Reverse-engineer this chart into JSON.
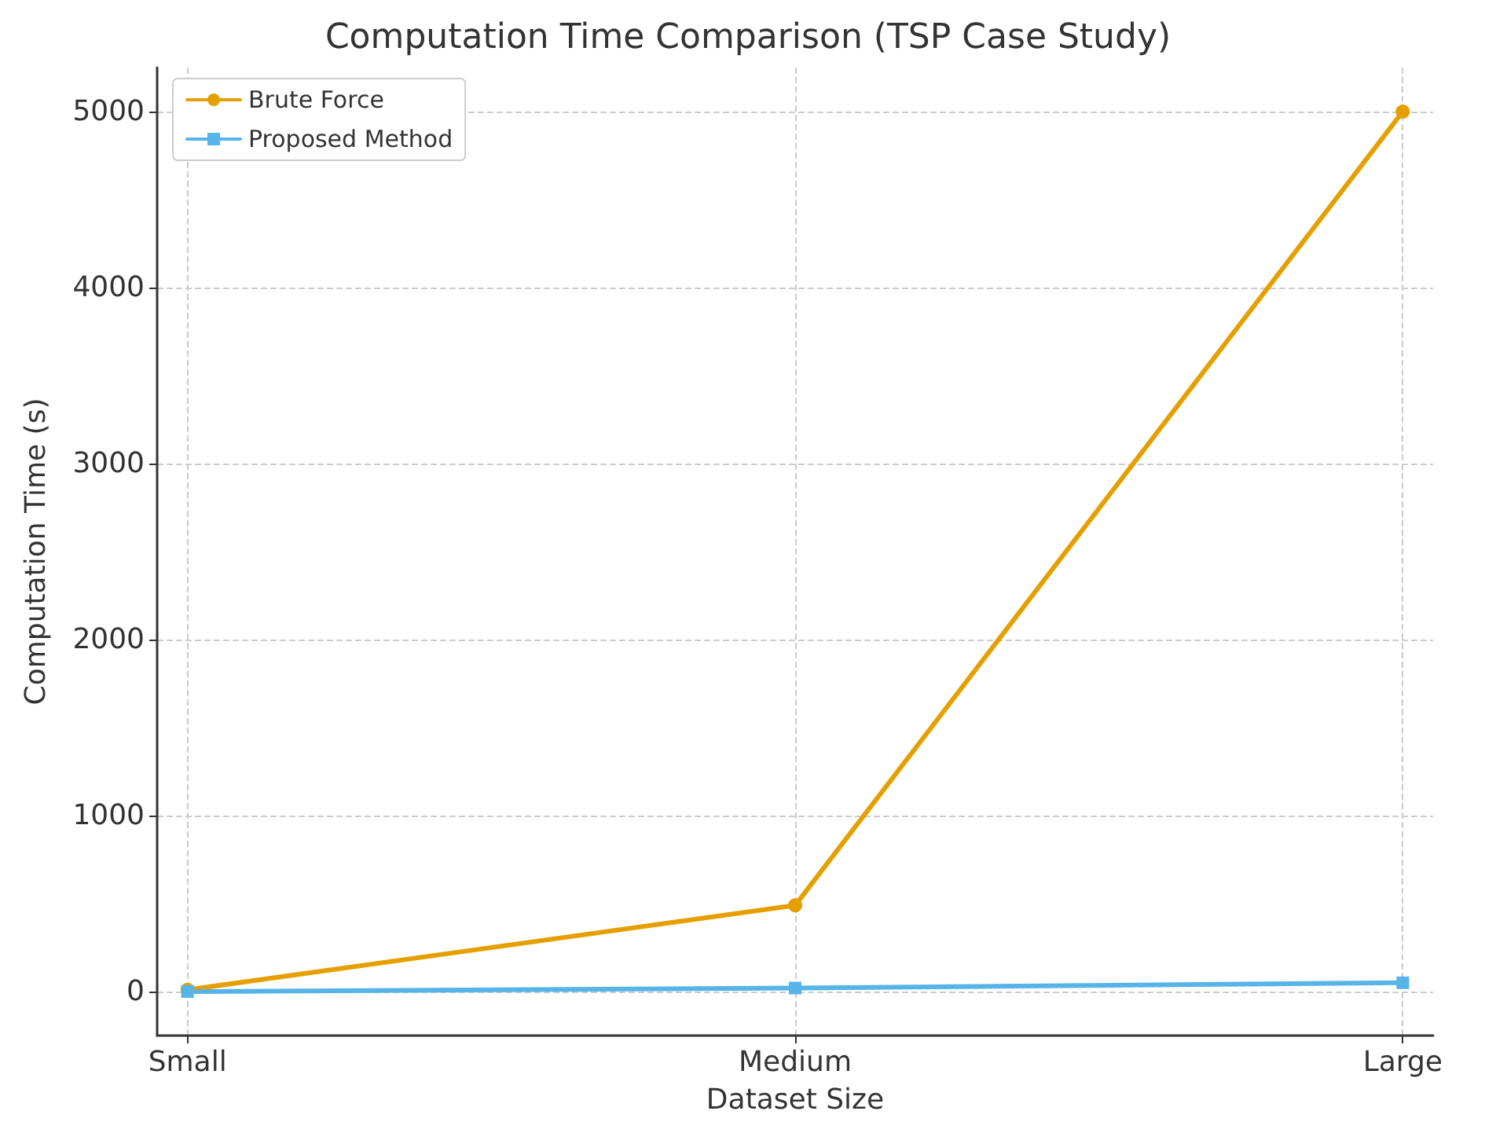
{
  "chart_data": {
    "type": "line",
    "title": "Computation Time Comparison (TSP Case Study)",
    "xlabel": "Dataset Size",
    "ylabel": "Computation Time (s)",
    "categories": [
      "Small",
      "Medium",
      "Large"
    ],
    "series": [
      {
        "name": "Brute Force",
        "color": "#e69f00",
        "values": [
          10,
          490,
          5000
        ],
        "marker": "circle"
      },
      {
        "name": "Proposed Method",
        "color": "#56b4e9",
        "values": [
          0,
          20,
          50
        ],
        "marker": "square"
      }
    ],
    "ylim": [
      -250,
      5250
    ],
    "yticks": [
      0,
      1000,
      2000,
      3000,
      4000,
      5000
    ],
    "grid": true,
    "legend": "top left",
    "line_style": "solid"
  }
}
